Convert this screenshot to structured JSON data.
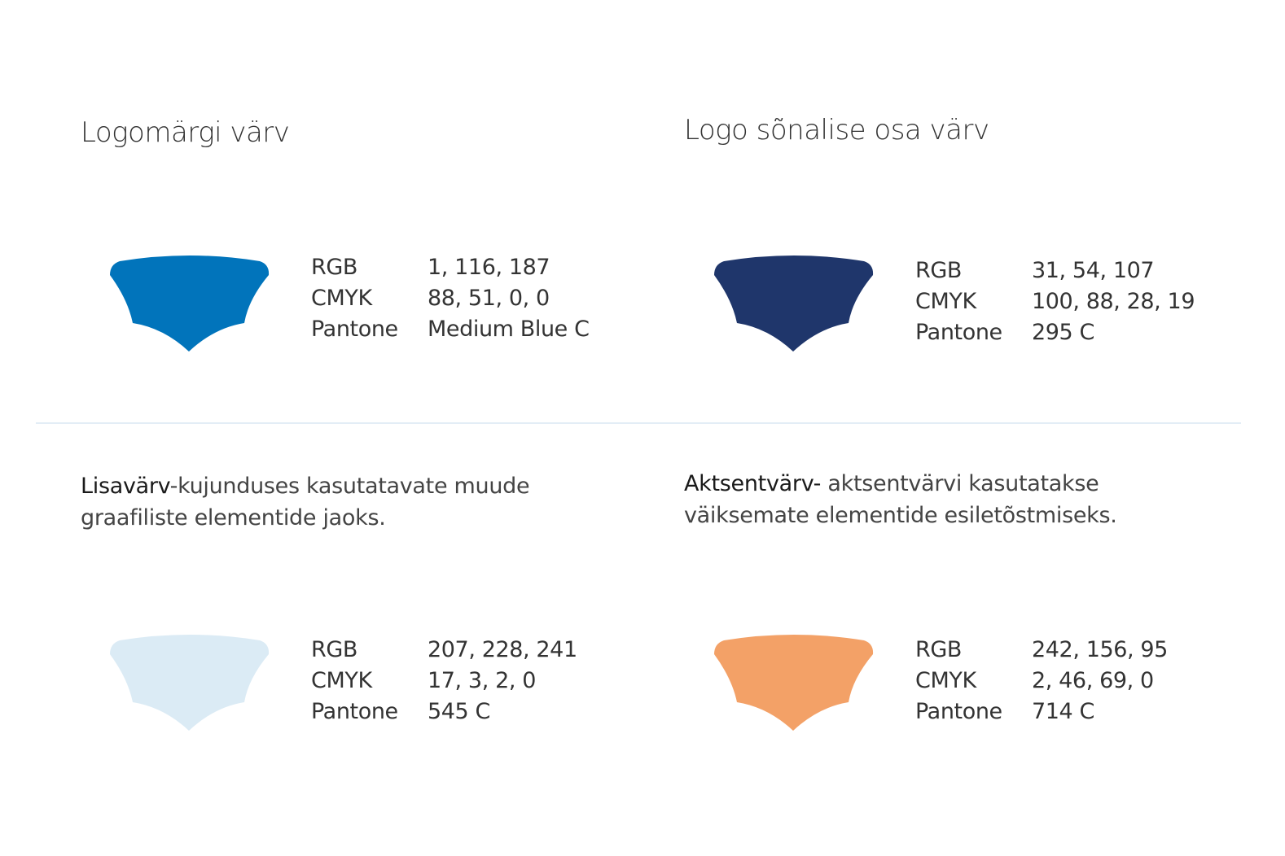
{
  "panels": [
    {
      "heading": "Logomärgi värv",
      "color": "#0174BB",
      "specs": [
        {
          "label": "RGB",
          "value": "1, 116, 187"
        },
        {
          "label": "CMYK",
          "value": "88, 51, 0, 0"
        },
        {
          "label": "Pantone",
          "value": "Medium Blue C"
        }
      ]
    },
    {
      "heading": "Logo sõnalise osa värv",
      "color": "#1F366B",
      "specs": [
        {
          "label": "RGB",
          "value": "31, 54, 107"
        },
        {
          "label": "CMYK",
          "value": "100, 88, 28, 19"
        },
        {
          "label": "Pantone",
          "value": "295 C"
        }
      ]
    },
    {
      "title": "Lisavärv",
      "description": "-kujunduses kasutatavate muude graafiliste elementide jaoks.",
      "color": "#CFE4F1",
      "specs": [
        {
          "label": "RGB",
          "value": "207, 228, 241"
        },
        {
          "label": "CMYK",
          "value": "17, 3, 2, 0"
        },
        {
          "label": "Pantone",
          "value": "545 C"
        }
      ]
    },
    {
      "title": "Aktsentvärv-",
      "description": " aktsentvärvi kasutatakse väiksemate elementide esiletõstmiseks.",
      "color": "#F29C5F",
      "specs": [
        {
          "label": "RGB",
          "value": "242, 156, 95"
        },
        {
          "label": "CMYK",
          "value": "2, 46, 69, 0"
        },
        {
          "label": "Pantone",
          "value": "714 C"
        }
      ]
    }
  ]
}
